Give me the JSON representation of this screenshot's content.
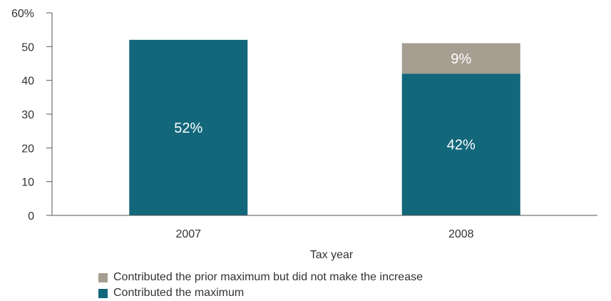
{
  "chart_data": {
    "type": "bar",
    "stacked": true,
    "categories": [
      "2007",
      "2008"
    ],
    "series": [
      {
        "name": "Contributed the maximum",
        "values": [
          52,
          42
        ],
        "labels": [
          "52%",
          "42%"
        ],
        "color": "#12677a"
      },
      {
        "name": "Contributed the prior maximum but did not make the increase",
        "values": [
          0,
          9
        ],
        "labels": [
          "",
          "9%"
        ],
        "color": "#a79e92"
      }
    ],
    "xlabel": "Tax year",
    "ylabel": "",
    "ylim": [
      0,
      60
    ],
    "yticks": [
      0,
      10,
      20,
      30,
      40,
      50,
      60
    ],
    "ytick_labels": [
      "0",
      "10",
      "20",
      "30",
      "40",
      "50",
      "60%"
    ],
    "grid": false,
    "legend_position": "bottom-left"
  }
}
